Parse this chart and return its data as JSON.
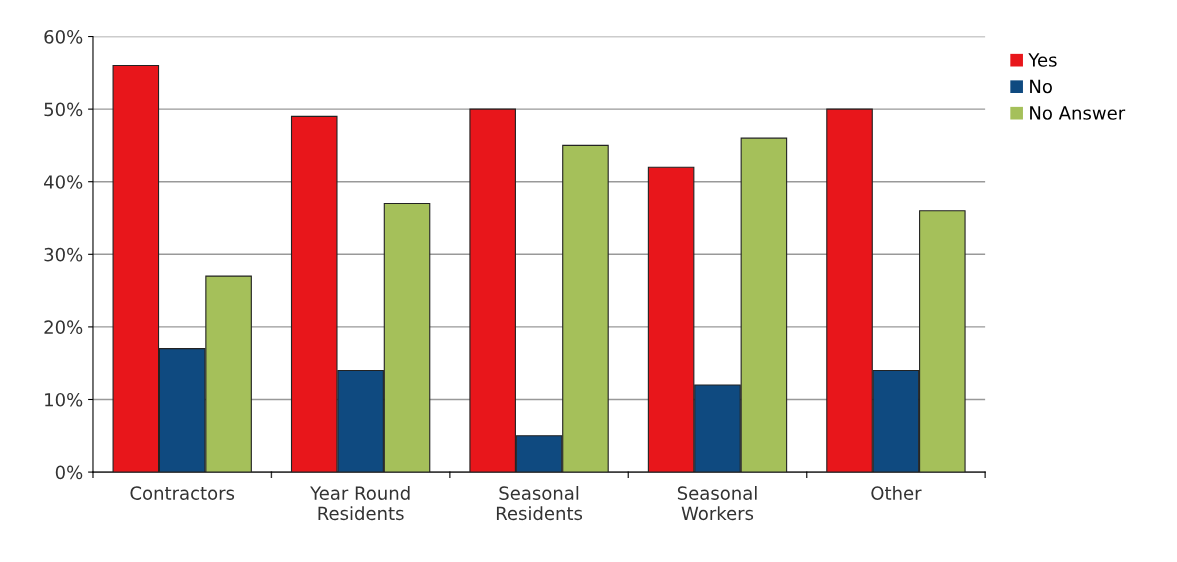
{
  "chart_data": {
    "type": "bar",
    "categories": [
      "Contractors",
      "Year Round\nResidents",
      "Seasonal\nResidents",
      "Seasonal\nWorkers",
      "Other"
    ],
    "series": [
      {
        "name": "Yes",
        "color": "#e8161b",
        "values": [
          56,
          49,
          50,
          42,
          50
        ]
      },
      {
        "name": "No",
        "color": "#0f4a80",
        "values": [
          17,
          14,
          5,
          12,
          14
        ]
      },
      {
        "name": "No Answer",
        "color": "#a5c05a",
        "values": [
          27,
          37,
          45,
          46,
          36
        ]
      }
    ],
    "ylim": [
      0,
      60
    ],
    "yticks": [
      {
        "value": 0,
        "label": "0%"
      },
      {
        "value": 10,
        "label": "10%"
      },
      {
        "value": 20,
        "label": "20%"
      },
      {
        "value": 30,
        "label": "30%"
      },
      {
        "value": 40,
        "label": "40%"
      },
      {
        "value": 50,
        "label": "50%"
      },
      {
        "value": 60,
        "label": "60%"
      }
    ],
    "grid": "y",
    "legend": "top right"
  }
}
